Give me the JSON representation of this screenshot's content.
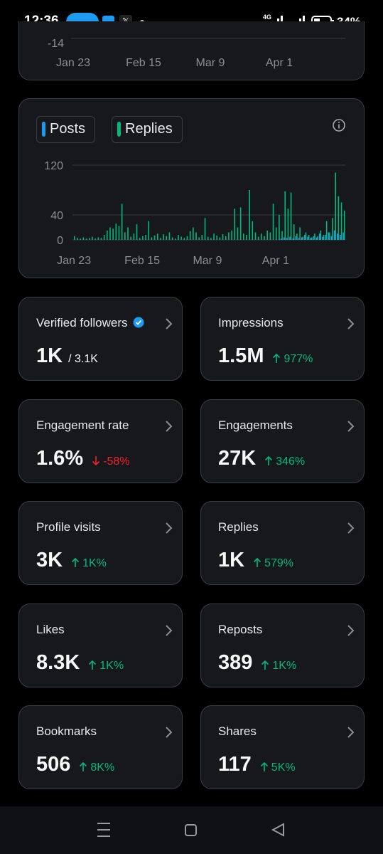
{
  "status_bar": {
    "time": "12:36",
    "network": "4G",
    "battery": "34%"
  },
  "overview_chart": {
    "y_label": "-14",
    "x_labels": [
      "Jan 23",
      "Feb 15",
      "Mar 9",
      "Apr 1"
    ]
  },
  "chart_data": {
    "type": "bar",
    "legend": [
      "Posts",
      "Replies"
    ],
    "categories": [
      "Jan 23",
      null,
      null,
      null,
      null,
      null,
      null,
      null,
      null,
      null,
      null,
      null,
      null,
      null,
      null,
      null,
      null,
      null,
      null,
      null,
      null,
      null,
      null,
      "Feb 15",
      null,
      null,
      null,
      null,
      null,
      null,
      null,
      null,
      null,
      null,
      null,
      null,
      null,
      null,
      null,
      null,
      null,
      null,
      null,
      null,
      null,
      "Mar 9",
      null,
      null,
      null,
      null,
      null,
      null,
      null,
      null,
      null,
      null,
      null,
      null,
      null,
      null,
      null,
      null,
      null,
      null,
      null,
      null,
      null,
      null,
      "Apr 1",
      null,
      null,
      null,
      null,
      null,
      null,
      null,
      null,
      null,
      null,
      null,
      null,
      null,
      null,
      null,
      null,
      null,
      null,
      null,
      null,
      null,
      null,
      null
    ],
    "series": [
      {
        "name": "Posts",
        "color": "#1d9bf0",
        "values": [
          0,
          0,
          0,
          0,
          0,
          0,
          0,
          0,
          0,
          0,
          0,
          0,
          0,
          0,
          0,
          0,
          0,
          0,
          0,
          0,
          0,
          0,
          0,
          0,
          0,
          0,
          0,
          0,
          0,
          0,
          0,
          0,
          0,
          0,
          0,
          0,
          0,
          0,
          0,
          0,
          0,
          0,
          0,
          0,
          0,
          0,
          0,
          0,
          0,
          0,
          0,
          0,
          0,
          0,
          0,
          0,
          0,
          0,
          0,
          0,
          0,
          0,
          0,
          0,
          0,
          0,
          0,
          0,
          0,
          0,
          2,
          4,
          3,
          5,
          2,
          6,
          3,
          4,
          8,
          5,
          3,
          6,
          4,
          10,
          5,
          8,
          12,
          6,
          15,
          10,
          8,
          12
        ]
      },
      {
        "name": "Replies",
        "color": "#00ba7c",
        "values": [
          6,
          3,
          2,
          4,
          2,
          3,
          5,
          2,
          4,
          3,
          8,
          15,
          20,
          18,
          26,
          22,
          58,
          12,
          20,
          5,
          10,
          25,
          3,
          6,
          8,
          30,
          4,
          7,
          10,
          3,
          9,
          6,
          12,
          4,
          2,
          8,
          5,
          3,
          6,
          14,
          20,
          12,
          4,
          8,
          35,
          5,
          3,
          10,
          7,
          4,
          9,
          6,
          12,
          15,
          50,
          20,
          52,
          10,
          8,
          80,
          30,
          12,
          5,
          10,
          6,
          15,
          12,
          58,
          20,
          40,
          14,
          78,
          50,
          76,
          25,
          10,
          20,
          5,
          12,
          8,
          4,
          10,
          6,
          15,
          8,
          30,
          12,
          35,
          108,
          70,
          60,
          47
        ]
      }
    ],
    "ylim": [
      0,
      120
    ],
    "yticks": [
      0,
      40,
      120
    ],
    "grid": true
  },
  "metrics": [
    {
      "name": "Verified followers",
      "value": "1K",
      "total": "/ 3.1K"
    },
    {
      "name": "Impressions",
      "value": "1.5M",
      "change": "977%",
      "direction": "up"
    },
    {
      "name": "Engagement rate",
      "value": "1.6%",
      "change": "-58%",
      "direction": "down"
    },
    {
      "name": "Engagements",
      "value": "27K",
      "change": "346%",
      "direction": "up"
    },
    {
      "name": "Profile visits",
      "value": "3K",
      "change": "1K%",
      "direction": "up"
    },
    {
      "name": "Replies",
      "value": "1K",
      "change": "579%",
      "direction": "up"
    },
    {
      "name": "Likes",
      "value": "8.3K",
      "change": "1K%",
      "direction": "up"
    },
    {
      "name": "Reposts",
      "value": "389",
      "change": "1K%",
      "direction": "up"
    },
    {
      "name": "Bookmarks",
      "value": "506",
      "change": "8K%",
      "direction": "up"
    },
    {
      "name": "Shares",
      "value": "117",
      "change": "5K%",
      "direction": "up"
    }
  ]
}
